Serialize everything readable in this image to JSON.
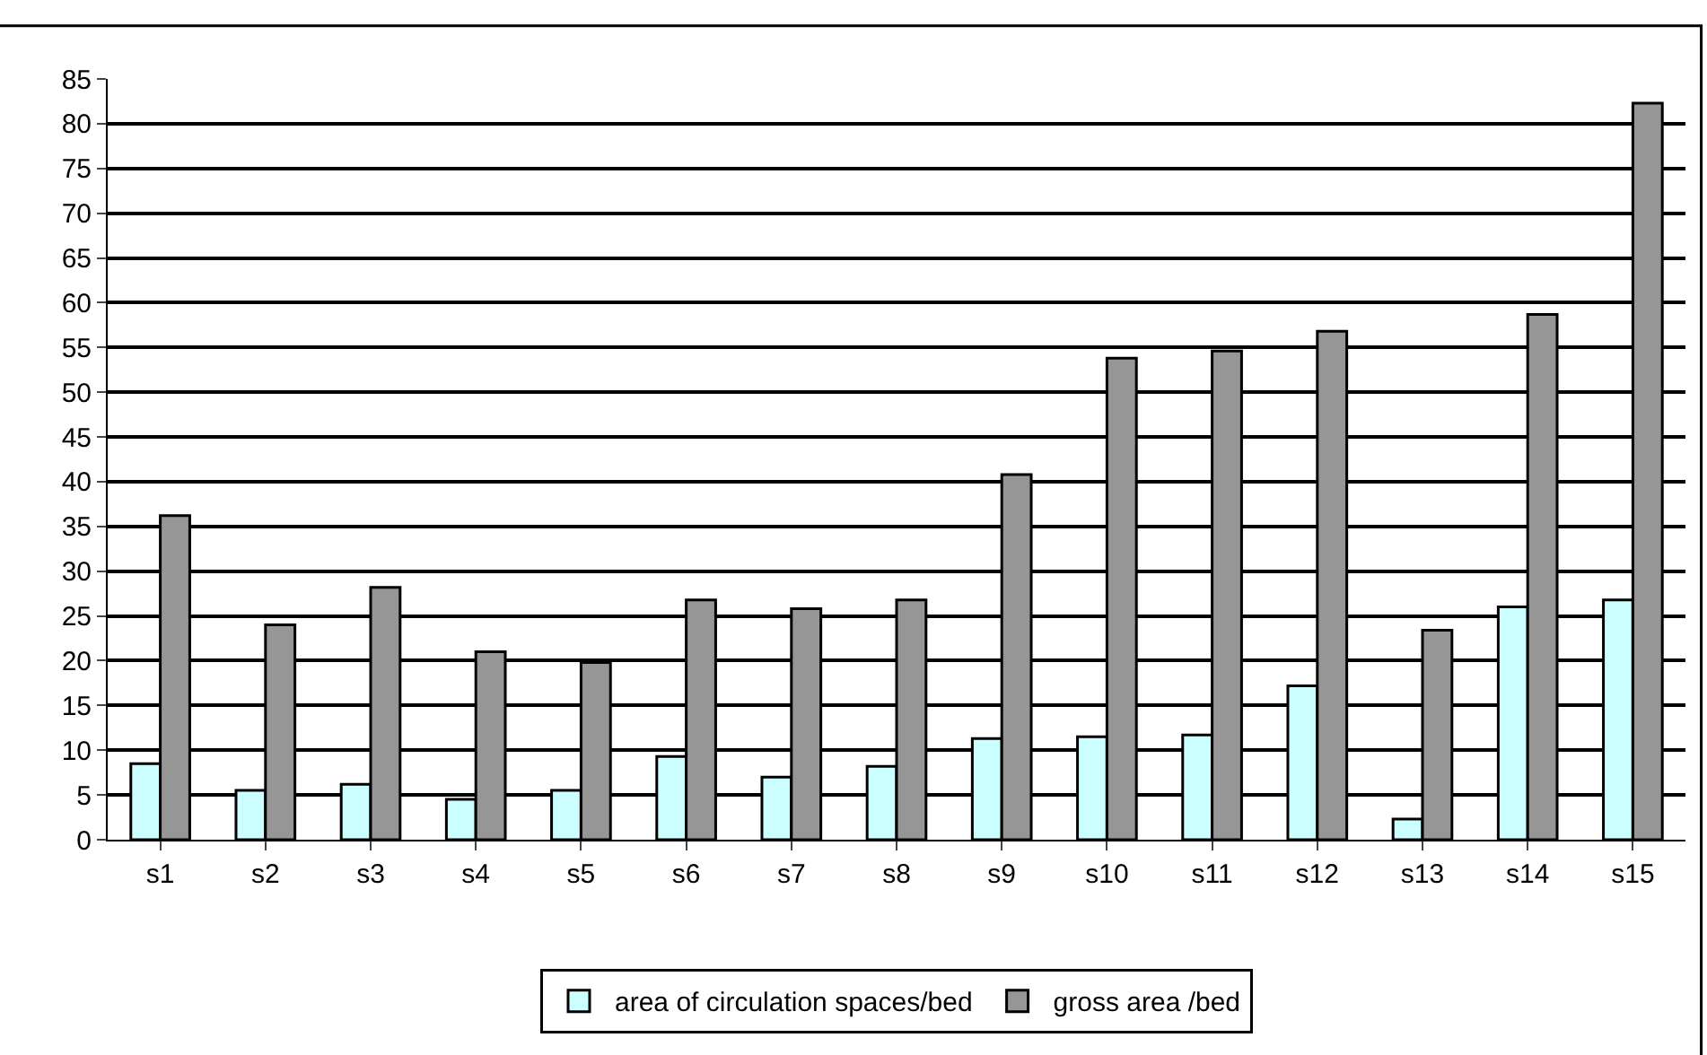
{
  "chart_data": {
    "type": "bar",
    "categories": [
      "s1",
      "s2",
      "s3",
      "s4",
      "s5",
      "s6",
      "s7",
      "s8",
      "s9",
      "s10",
      "s11",
      "s12",
      "s13",
      "s14",
      "s15"
    ],
    "series": [
      {
        "name": "area of circulation spaces/bed",
        "color": "#ccffff",
        "values": [
          8.5,
          5.5,
          6.2,
          4.5,
          5.5,
          9.3,
          7,
          8.2,
          11.3,
          11.5,
          11.7,
          17.2,
          2.3,
          26,
          26.8
        ]
      },
      {
        "name": "gross area /bed",
        "color": "#969696",
        "values": [
          36.2,
          24,
          28.2,
          21,
          19.8,
          26.8,
          25.8,
          26.8,
          40.8,
          53.8,
          54.6,
          56.8,
          23.4,
          58.7,
          82.3
        ]
      }
    ],
    "ylim": [
      0,
      85
    ],
    "yticks": [
      0,
      5,
      10,
      15,
      20,
      25,
      30,
      35,
      40,
      45,
      50,
      55,
      60,
      65,
      70,
      75,
      80,
      85
    ],
    "grid": "y",
    "legend": "bottom"
  }
}
